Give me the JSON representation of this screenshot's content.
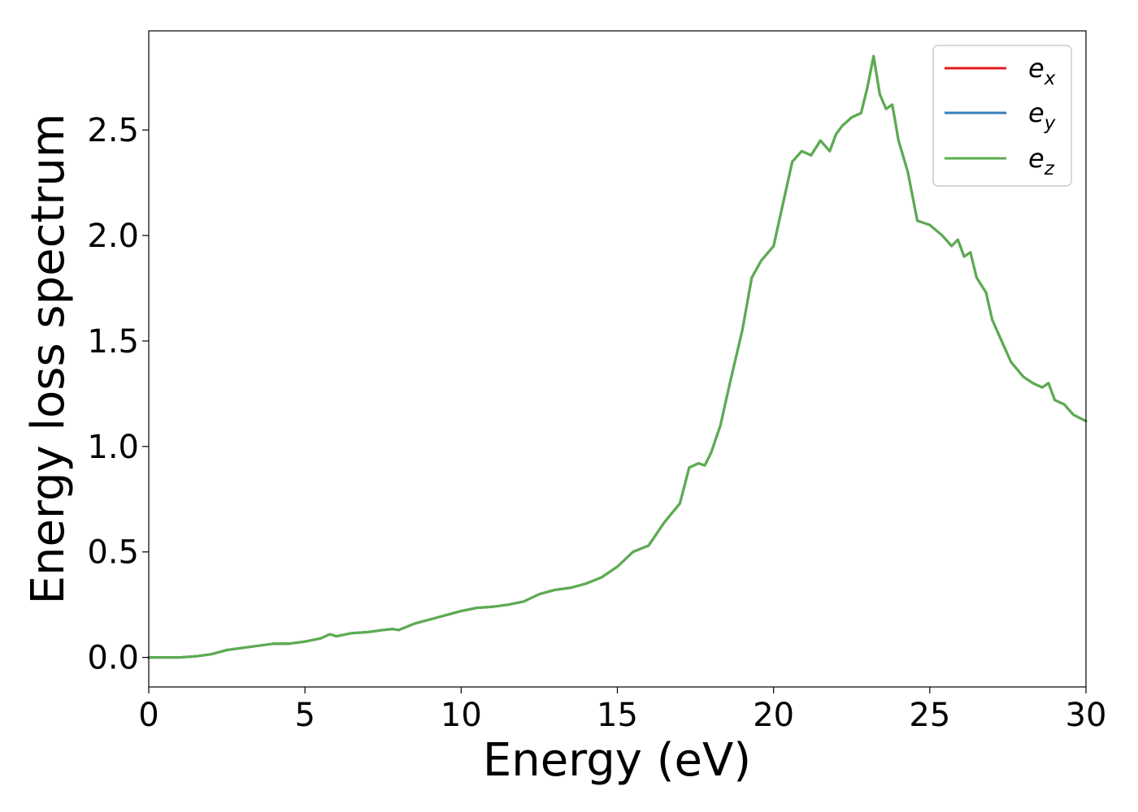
{
  "chart_data": {
    "type": "line",
    "xlabel": "Energy (eV)",
    "ylabel": "Energy loss spectrum",
    "xlim": [
      0,
      30
    ],
    "ylim": [
      -0.14,
      2.97
    ],
    "xticks": [
      0,
      5,
      10,
      15,
      20,
      25,
      30
    ],
    "xtick_labels": [
      "0",
      "5",
      "10",
      "15",
      "20",
      "25",
      "30"
    ],
    "yticks": [
      0.0,
      0.5,
      1.0,
      1.5,
      2.0,
      2.5
    ],
    "ytick_labels": [
      "0.0",
      "0.5",
      "1.0",
      "1.5",
      "2.0",
      "2.5"
    ],
    "grid": false,
    "legend_position": "top-right",
    "x": [
      0,
      0.5,
      1,
      1.5,
      2,
      2.5,
      3,
      3.5,
      4,
      4.5,
      5,
      5.5,
      5.8,
      6,
      6.5,
      7,
      7.5,
      7.8,
      8,
      8.5,
      9,
      9.5,
      10,
      10.5,
      11,
      11.5,
      12,
      12.5,
      13,
      13.5,
      14,
      14.5,
      15,
      15.5,
      16,
      16.5,
      17,
      17.3,
      17.6,
      17.8,
      18,
      18.3,
      18.6,
      19,
      19.3,
      19.6,
      20,
      20.3,
      20.6,
      20.9,
      21.2,
      21.5,
      21.8,
      22,
      22.2,
      22.5,
      22.8,
      23,
      23.2,
      23.4,
      23.6,
      23.8,
      24,
      24.3,
      24.6,
      25,
      25.4,
      25.7,
      25.9,
      26.1,
      26.3,
      26.5,
      26.8,
      27,
      27.3,
      27.6,
      28,
      28.3,
      28.6,
      28.8,
      29,
      29.3,
      29.6,
      30
    ],
    "series": [
      {
        "name": "e",
        "subscript": "x",
        "color": "#e41a1c",
        "values": [
          0.0,
          0.0,
          0.0,
          0.005,
          0.015,
          0.035,
          0.045,
          0.055,
          0.065,
          0.065,
          0.075,
          0.09,
          0.11,
          0.1,
          0.115,
          0.12,
          0.13,
          0.135,
          0.13,
          0.16,
          0.18,
          0.2,
          0.22,
          0.235,
          0.24,
          0.25,
          0.265,
          0.3,
          0.32,
          0.33,
          0.35,
          0.38,
          0.43,
          0.5,
          0.53,
          0.64,
          0.73,
          0.9,
          0.92,
          0.91,
          0.97,
          1.1,
          1.3,
          1.55,
          1.8,
          1.88,
          1.95,
          2.15,
          2.35,
          2.4,
          2.38,
          2.45,
          2.4,
          2.48,
          2.52,
          2.56,
          2.58,
          2.7,
          2.85,
          2.67,
          2.6,
          2.62,
          2.45,
          2.3,
          2.07,
          2.05,
          2.0,
          1.95,
          1.98,
          1.9,
          1.92,
          1.8,
          1.73,
          1.6,
          1.5,
          1.4,
          1.33,
          1.3,
          1.28,
          1.3,
          1.22,
          1.2,
          1.15,
          1.12
        ]
      },
      {
        "name": "e",
        "subscript": "y",
        "color": "#377eb8",
        "values": [
          0.0,
          0.0,
          0.0,
          0.005,
          0.015,
          0.035,
          0.045,
          0.055,
          0.065,
          0.065,
          0.075,
          0.09,
          0.11,
          0.1,
          0.115,
          0.12,
          0.13,
          0.135,
          0.13,
          0.16,
          0.18,
          0.2,
          0.22,
          0.235,
          0.24,
          0.25,
          0.265,
          0.3,
          0.32,
          0.33,
          0.35,
          0.38,
          0.43,
          0.5,
          0.53,
          0.64,
          0.73,
          0.9,
          0.92,
          0.91,
          0.97,
          1.1,
          1.3,
          1.55,
          1.8,
          1.88,
          1.95,
          2.15,
          2.35,
          2.4,
          2.38,
          2.45,
          2.4,
          2.48,
          2.52,
          2.56,
          2.58,
          2.7,
          2.85,
          2.67,
          2.6,
          2.62,
          2.45,
          2.3,
          2.07,
          2.05,
          2.0,
          1.95,
          1.98,
          1.9,
          1.92,
          1.8,
          1.73,
          1.6,
          1.5,
          1.4,
          1.33,
          1.3,
          1.28,
          1.3,
          1.22,
          1.2,
          1.15,
          1.12
        ]
      },
      {
        "name": "e",
        "subscript": "z",
        "color": "#5aae4e",
        "values": [
          0.0,
          0.0,
          0.0,
          0.005,
          0.015,
          0.035,
          0.045,
          0.055,
          0.065,
          0.065,
          0.075,
          0.09,
          0.11,
          0.1,
          0.115,
          0.12,
          0.13,
          0.135,
          0.13,
          0.16,
          0.18,
          0.2,
          0.22,
          0.235,
          0.24,
          0.25,
          0.265,
          0.3,
          0.32,
          0.33,
          0.35,
          0.38,
          0.43,
          0.5,
          0.53,
          0.64,
          0.73,
          0.9,
          0.92,
          0.91,
          0.97,
          1.1,
          1.3,
          1.55,
          1.8,
          1.88,
          1.95,
          2.15,
          2.35,
          2.4,
          2.38,
          2.45,
          2.4,
          2.48,
          2.52,
          2.56,
          2.58,
          2.7,
          2.85,
          2.67,
          2.6,
          2.62,
          2.45,
          2.3,
          2.07,
          2.05,
          2.0,
          1.95,
          1.98,
          1.9,
          1.92,
          1.8,
          1.73,
          1.6,
          1.5,
          1.4,
          1.33,
          1.3,
          1.28,
          1.3,
          1.22,
          1.2,
          1.15,
          1.12
        ]
      }
    ]
  }
}
